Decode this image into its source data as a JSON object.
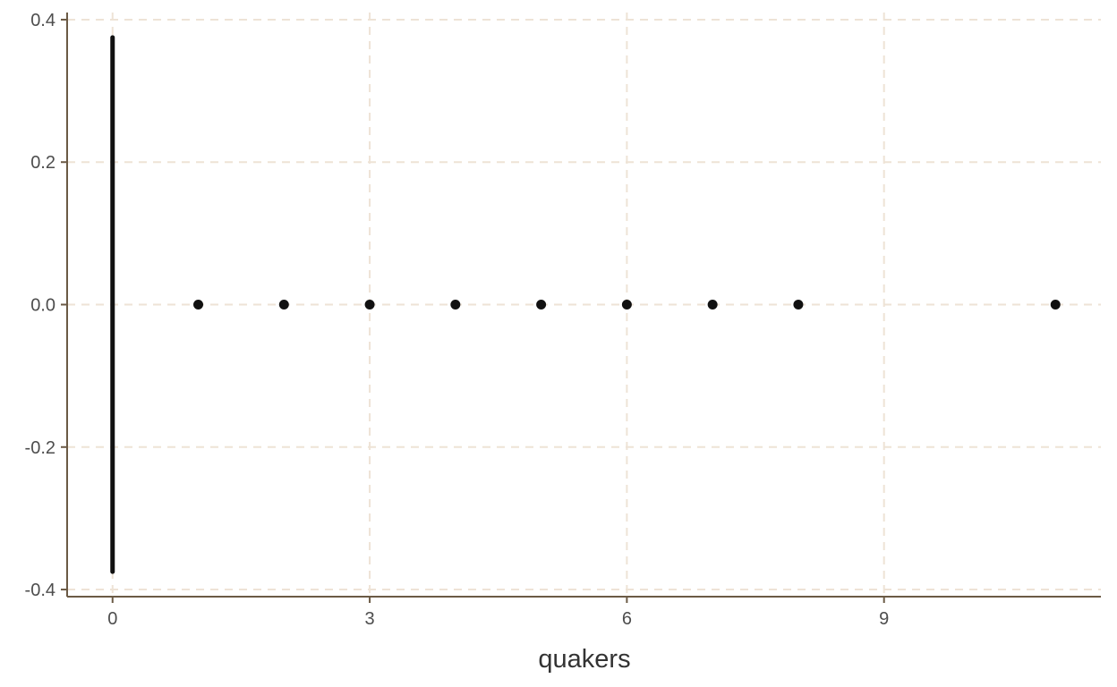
{
  "chart_data": {
    "type": "scatter",
    "title": "",
    "xlabel": "quakers",
    "ylabel": "",
    "xlim": [
      -0.53,
      11.53
    ],
    "ylim": [
      -0.41,
      0.41
    ],
    "x_ticks": [
      0,
      3,
      6,
      9
    ],
    "y_ticks": [
      -0.4,
      -0.2,
      0.0,
      0.2,
      0.4
    ],
    "x_tick_labels": [
      "0",
      "3",
      "6",
      "9"
    ],
    "y_tick_labels": [
      "-0.4",
      "-0.2",
      "0.0",
      "0.2",
      "0.4"
    ],
    "grid": true,
    "colors": {
      "points": "#111111",
      "grid": "#eee3d6",
      "axis": "#6b5a45"
    },
    "points_at_zero_x": {
      "x": 0,
      "y_min": -0.375,
      "y_max": 0.375
    },
    "points": [
      {
        "x": 1,
        "y": 0.0
      },
      {
        "x": 2,
        "y": 0.0
      },
      {
        "x": 3,
        "y": 0.0
      },
      {
        "x": 4,
        "y": 0.0
      },
      {
        "x": 5,
        "y": 0.0
      },
      {
        "x": 6,
        "y": 0.0
      },
      {
        "x": 7,
        "y": 0.0
      },
      {
        "x": 8,
        "y": 0.0
      },
      {
        "x": 11,
        "y": 0.0
      }
    ]
  }
}
